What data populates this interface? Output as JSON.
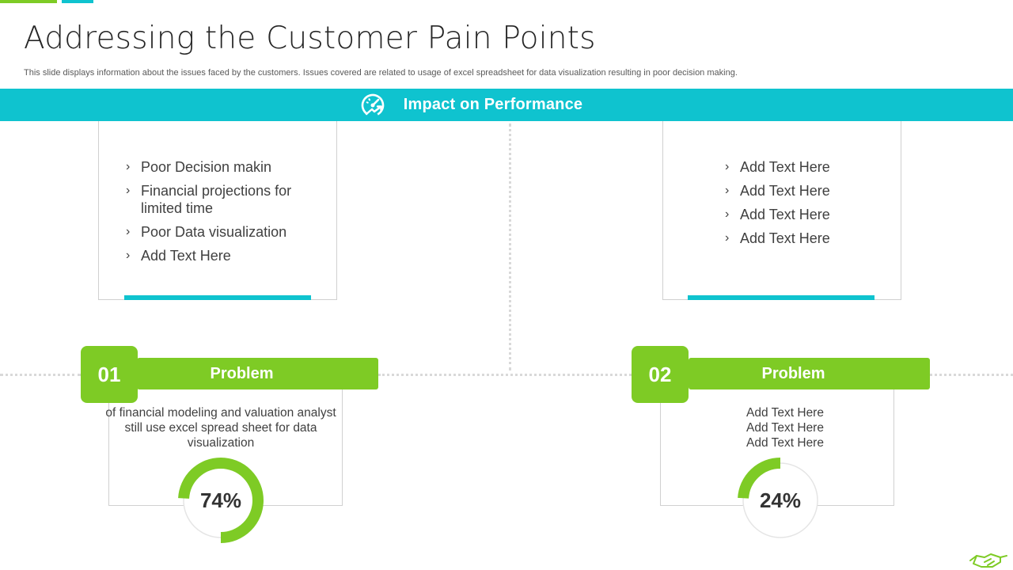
{
  "slide": {
    "title": "Addressing the Customer Pain Points",
    "subtitle": "This slide displays information about the issues faced by the customers. Issues covered are related to usage of excel spreadsheet for data visualization resulting in poor decision making."
  },
  "banner": {
    "title": "Impact on Performance",
    "icon": "speedometer-icon"
  },
  "impact_left": {
    "items": [
      "Poor Decision makin",
      "Financial projections for limited time",
      "Poor Data visualization",
      "Add Text Here"
    ]
  },
  "impact_right": {
    "items": [
      "Add Text Here",
      "Add Text Here",
      "Add Text Here",
      "Add Text Here"
    ]
  },
  "problems": [
    {
      "number": "01",
      "label": "Problem",
      "text": "of financial modeling and valuation analyst still use excel spread sheet for data visualization",
      "percent_label": "74%",
      "percent": 74
    },
    {
      "number": "02",
      "label": "Problem",
      "text_lines": [
        "Add Text Here",
        "Add Text Here",
        "Add Text Here"
      ],
      "percent_label": "24%",
      "percent": 24
    }
  ],
  "colors": {
    "green": "#7ecb25",
    "cyan": "#0fc3cf",
    "ring_track": "#e5e5e5"
  },
  "chevron": "›"
}
